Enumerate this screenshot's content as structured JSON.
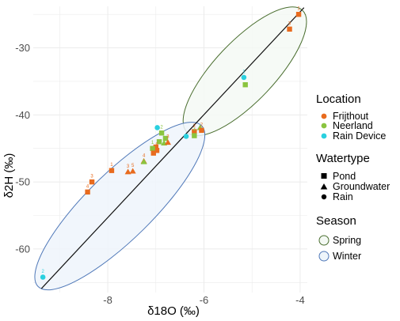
{
  "chart_data": {
    "type": "scatter",
    "xlabel": "δ18O (‰)",
    "ylabel": "δ2H (‰)",
    "xlim": [
      -9.55,
      -3.85
    ],
    "ylim": [
      -66.5,
      -23.8
    ],
    "xticks": [
      -8,
      -6,
      -4
    ],
    "yticks": [
      -30,
      -40,
      -50,
      -60
    ],
    "grid": true,
    "legend_position": "right",
    "colors": {
      "Frijthout": "#e86b1e",
      "Neerland": "#8ac43f",
      "Rain Device": "#2ad0df",
      "Spring": "#4a6e2f",
      "Winter": "#4f78b8",
      "line": "#111111"
    },
    "legend": {
      "location": {
        "title": "Location",
        "items": [
          "Frijthout",
          "Neerland",
          "Rain Device"
        ]
      },
      "watertype": {
        "title": "Watertype",
        "items": [
          "Pond",
          "Groundwater",
          "Rain"
        ]
      },
      "season": {
        "title": "Season",
        "items": [
          "Spring",
          "Winter"
        ]
      }
    },
    "points": [
      {
        "x": -4.03,
        "y": -25.0,
        "location": "Frijthout",
        "watertype": "Pond",
        "label": "1"
      },
      {
        "x": -4.22,
        "y": -27.2,
        "location": "Frijthout",
        "watertype": "Pond",
        "label": "3"
      },
      {
        "x": -5.17,
        "y": -34.4,
        "location": "Rain Device",
        "watertype": "Rain",
        "label": "1"
      },
      {
        "x": -5.14,
        "y": -35.5,
        "location": "Neerland",
        "watertype": "Pond",
        "label": ""
      },
      {
        "x": -6.08,
        "y": -41.9,
        "location": "Neerland",
        "watertype": "Groundwater",
        "label": ""
      },
      {
        "x": -6.05,
        "y": -42.3,
        "location": "Frijthout",
        "watertype": "Pond",
        "label": "2"
      },
      {
        "x": -6.2,
        "y": -42.5,
        "location": "Frijthout",
        "watertype": "Pond",
        "label": "2"
      },
      {
        "x": -6.2,
        "y": -43.1,
        "location": "Neerland",
        "watertype": "Pond",
        "label": "4"
      },
      {
        "x": -6.37,
        "y": -43.2,
        "location": "Rain Device",
        "watertype": "Rain",
        "label": ""
      },
      {
        "x": -6.97,
        "y": -41.9,
        "location": "Rain Device",
        "watertype": "Rain",
        "label": ""
      },
      {
        "x": -6.88,
        "y": -42.7,
        "location": "Neerland",
        "watertype": "Pond",
        "label": "2"
      },
      {
        "x": -6.8,
        "y": -43.5,
        "location": "Neerland",
        "watertype": "Pond",
        "label": ""
      },
      {
        "x": -6.83,
        "y": -44.2,
        "location": "Neerland",
        "watertype": "Groundwater",
        "label": ""
      },
      {
        "x": -6.93,
        "y": -44.0,
        "location": "Neerland",
        "watertype": "Pond",
        "label": ""
      },
      {
        "x": -6.75,
        "y": -44.1,
        "location": "Frijthout",
        "watertype": "Groundwater",
        "label": "3"
      },
      {
        "x": -7.0,
        "y": -44.8,
        "location": "Frijthout",
        "watertype": "Pond",
        "label": ""
      },
      {
        "x": -6.98,
        "y": -45.3,
        "location": "Frijthout",
        "watertype": "Pond",
        "label": "5"
      },
      {
        "x": -7.07,
        "y": -45.0,
        "location": "Neerland",
        "watertype": "Pond",
        "label": "1"
      },
      {
        "x": -7.05,
        "y": -45.7,
        "location": "Frijthout",
        "watertype": "Pond",
        "label": ""
      },
      {
        "x": -7.25,
        "y": -46.9,
        "location": "Frijthout",
        "watertype": "Groundwater",
        "label": "4"
      },
      {
        "x": -7.25,
        "y": -47.0,
        "location": "Neerland",
        "watertype": "Groundwater",
        "label": ""
      },
      {
        "x": -7.48,
        "y": -48.4,
        "location": "Frijthout",
        "watertype": "Groundwater",
        "label": "5"
      },
      {
        "x": -7.58,
        "y": -48.5,
        "location": "Frijthout",
        "watertype": "Groundwater",
        "label": "3"
      },
      {
        "x": -7.92,
        "y": -48.3,
        "location": "Frijthout",
        "watertype": "Pond",
        "label": "1"
      },
      {
        "x": -8.33,
        "y": -50.0,
        "location": "Frijthout",
        "watertype": "Pond",
        "label": "3"
      },
      {
        "x": -8.42,
        "y": -51.5,
        "location": "Frijthout",
        "watertype": "Pond",
        "label": "4"
      },
      {
        "x": -9.35,
        "y": -64.2,
        "location": "Rain Device",
        "watertype": "Rain",
        "label": "2"
      }
    ],
    "regression_line": {
      "x1": -9.38,
      "y1": -65.9,
      "x2": -3.92,
      "y2": -24.0
    },
    "ellipses": [
      {
        "season": "Spring",
        "x1": -6.35,
        "y1": -42.6,
        "x2": -3.95,
        "y2": -24.4
      },
      {
        "season": "Winter",
        "x1": -9.45,
        "y1": -65.6,
        "x2": -6.05,
        "y2": -41.6
      }
    ]
  }
}
